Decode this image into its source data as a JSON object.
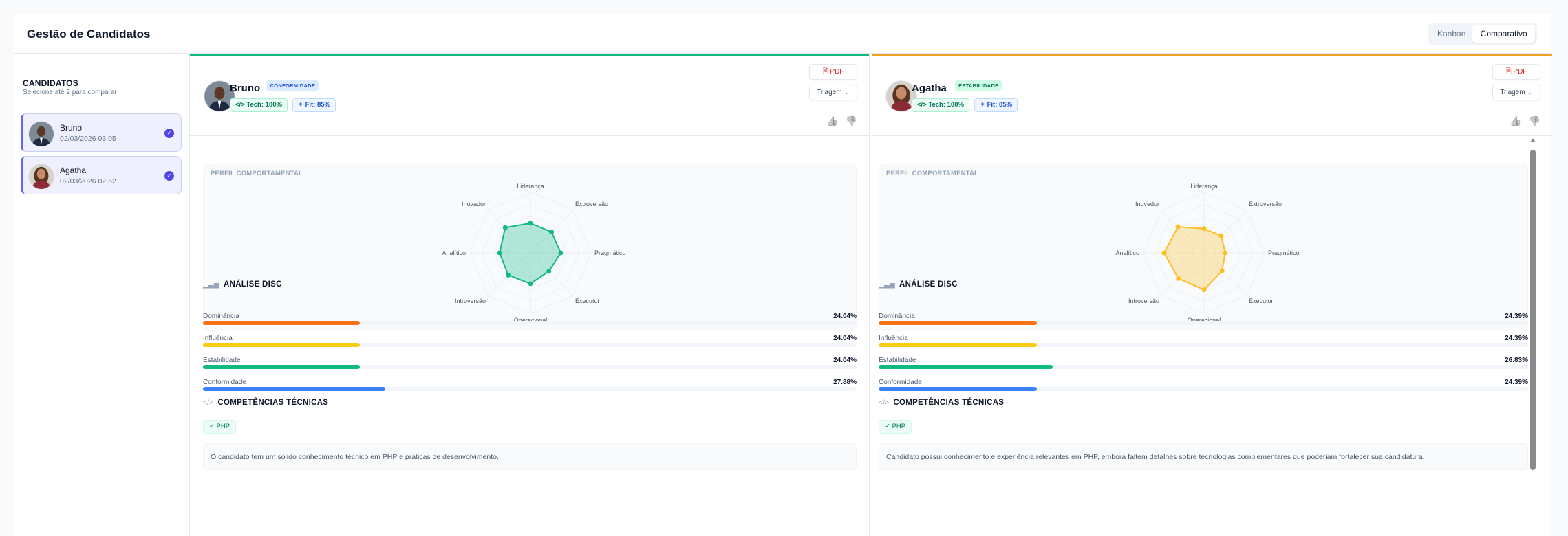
{
  "header": {
    "title": "Gestão de Candidatos",
    "view_toggle": [
      {
        "label": "Kanban",
        "active": false
      },
      {
        "label": "Comparativo",
        "active": true
      }
    ]
  },
  "sidebar": {
    "heading": "CANDIDATOS",
    "subtitle": "Selecione até 2 para comparar",
    "items": [
      {
        "name": "Bruno",
        "date": "02/03/2026 03:05",
        "selected": true,
        "check": "✓"
      },
      {
        "name": "Agatha",
        "date": "02/03/2026 02:52",
        "selected": true,
        "check": "✓"
      }
    ]
  },
  "columns": [
    {
      "name": "Bruno",
      "accent": "#10b981",
      "profile_badge": "CONFORMIDADE",
      "badge_bg": "#dbeafe",
      "badge_color": "#1d4ed8",
      "tech": "Tech: 100%",
      "fit": "Fit: 85%",
      "pdf_label": "PDF",
      "status_select": "Triagem",
      "thumbs_up": "👍",
      "thumbs_down": "👎",
      "radar_title": "PERFIL COMPORTAMENTAL",
      "radar_color": "#10b981",
      "disc_title": "ANÁLISE DISC",
      "disc": [
        {
          "label": "Dominância",
          "value": 24.04,
          "display": "24.04%",
          "color": "#f97316"
        },
        {
          "label": "Influência",
          "value": 24.04,
          "display": "24.04%",
          "color": "#facc15"
        },
        {
          "label": "Estabilidade",
          "value": 24.04,
          "display": "24.04%",
          "color": "#10b981"
        },
        {
          "label": "Conformidade",
          "value": 27.88,
          "display": "27.88%",
          "color": "#3b82f6"
        }
      ],
      "skills_title": "COMPETÊNCIAS TÉCNICAS",
      "skills": [
        "✓ PHP"
      ],
      "summary": "O candidato tem um sólido conhecimento técnico em PHP e práticas de desenvolvimento."
    },
    {
      "name": "Agatha",
      "accent": "#e8a325",
      "profile_badge": "ESTABILIDADE",
      "badge_bg": "#d1fae5",
      "badge_color": "#047857",
      "tech": "Tech: 100%",
      "fit": "Fit: 85%",
      "pdf_label": "PDF",
      "status_select": "Triagem",
      "thumbs_up": "👍",
      "thumbs_down": "👎",
      "radar_title": "PERFIL COMPORTAMENTAL",
      "radar_color": "#fbbf24",
      "disc_title": "ANÁLISE DISC",
      "disc": [
        {
          "label": "Dominância",
          "value": 24.39,
          "display": "24.39%",
          "color": "#f97316"
        },
        {
          "label": "Influência",
          "value": 24.39,
          "display": "24.39%",
          "color": "#facc15"
        },
        {
          "label": "Estabilidade",
          "value": 26.83,
          "display": "26.83%",
          "color": "#10b981"
        },
        {
          "label": "Conformidade",
          "value": 24.39,
          "display": "24.39%",
          "color": "#3b82f6"
        }
      ],
      "skills_title": "COMPETÊNCIAS TÉCNICAS",
      "skills": [
        "✓ PHP"
      ],
      "summary": "Candidato possui conhecimento e experiência relevantes em PHP, embora faltem detalhes sobre tecnologias complementares que poderiam fortalecer sua candidatura."
    }
  ],
  "chart_data": [
    {
      "type": "radar",
      "categories": [
        "Liderança",
        "Extroversão",
        "Pragmático",
        "Executor",
        "Operacional",
        "Introversão",
        "Analítico",
        "Inovador"
      ],
      "range": [
        0,
        100
      ],
      "series": [
        {
          "values": [
            49,
            49,
            50,
            43,
            51,
            52,
            51,
            59
          ]
        }
      ]
    },
    {
      "type": "radar",
      "categories": [
        "Liderança",
        "Extroversão",
        "Pragmático",
        "Executor",
        "Operacional",
        "Introversão",
        "Analítico",
        "Inovador"
      ],
      "range": [
        0,
        100
      ],
      "series": [
        {
          "values": [
            40,
            40,
            35,
            42,
            61,
            60,
            66,
            61
          ]
        }
      ]
    }
  ]
}
